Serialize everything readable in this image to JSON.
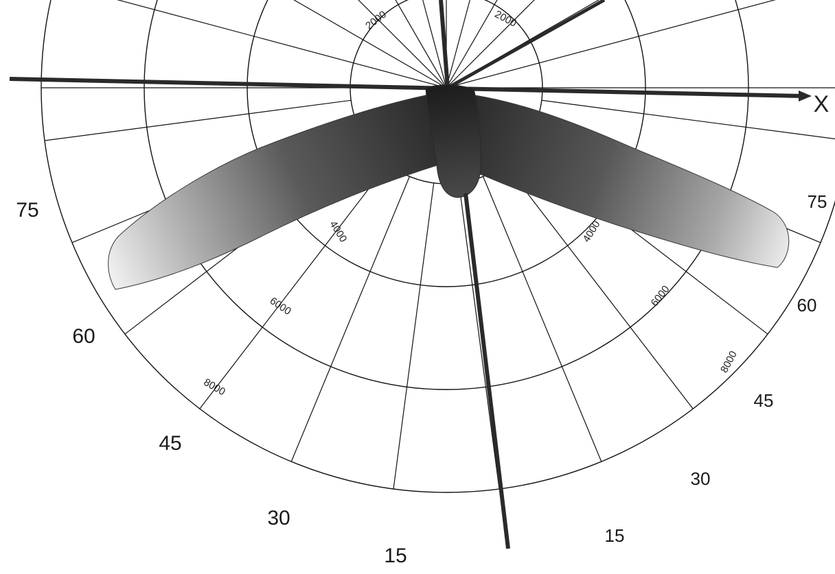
{
  "diagram": {
    "axis_label": "X",
    "angle_labels_left": [
      "75",
      "60",
      "45",
      "30",
      "15"
    ],
    "angle_labels_right": [
      "75",
      "60",
      "45",
      "30",
      "15"
    ],
    "radial_labels": [
      "2000",
      "4000",
      "6000",
      "8000"
    ],
    "colors": {
      "grid": "#111111",
      "axis": "#2a2a2a",
      "lobe_dark": "#2b2b2b",
      "lobe_light": "#e6e6e6"
    }
  }
}
